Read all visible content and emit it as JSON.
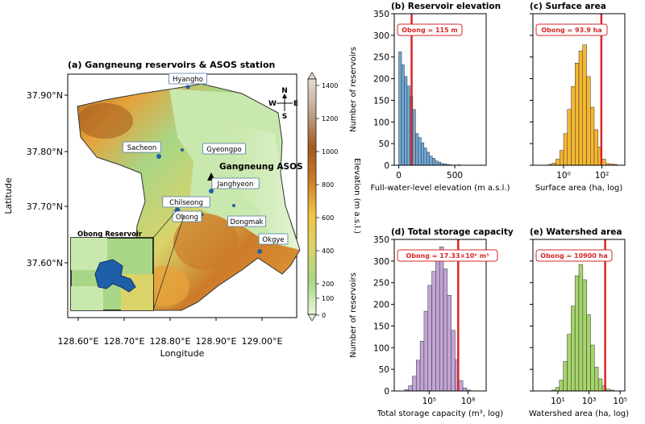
{
  "colors": {
    "reservoir": "#1f5fa8",
    "redline": "#d62728",
    "blue_hist": "#6fa8d6",
    "orange_hist": "#f5b731",
    "purple_hist": "#c3a5d6",
    "green_hist": "#a6d46b",
    "elev_stops": [
      "#e5f5d8",
      "#c9e8ad",
      "#a8d686",
      "#d9d36a",
      "#f0c341",
      "#e7a23a",
      "#cc7b2a",
      "#a25a1d",
      "#7a4418",
      "#bfa68f",
      "#e6dbd2"
    ]
  },
  "map": {
    "title": "(a) Gangneung reservoirs & ASOS station",
    "xlabel": "Longitude",
    "ylabel": "Latitude",
    "xticks": [
      "128.60°E",
      "128.70°E",
      "128.80°E",
      "128.90°E",
      "129.00°E"
    ],
    "yticks": [
      "37.90°N",
      "37.80°N",
      "37.70°N",
      "37.60°N"
    ],
    "colorbar_label": "Elevation (m a.s.l.)",
    "colorbar_ticks": [
      "1400",
      "1200",
      "1000",
      "800",
      "600",
      "400",
      "200",
      "100",
      "0"
    ],
    "compass": {
      "n": "N",
      "s": "S",
      "w": "W",
      "e": "E"
    },
    "station_label": "Gangneung ASOS",
    "inset_title": "Obong Reservoir",
    "places": [
      "Hyangho",
      "Sacheon",
      "Gyeongpo",
      "Janghyeon",
      "Chilseong",
      "Obong",
      "Dongmak",
      "Okgye"
    ]
  },
  "chart_data": [
    {
      "type": "bar",
      "title": "(b) Reservoir elevation",
      "xlabel": "Full-water-level elevation (m a.s.l.)",
      "ylabel": "Number of reservoirs",
      "xlim": [
        -40,
        780
      ],
      "ylim": [
        0,
        350
      ],
      "xticks": [
        "0",
        "500"
      ],
      "yticks": [
        "0",
        "50",
        "100",
        "150",
        "200",
        "250",
        "300",
        "350"
      ],
      "bin_width": 25,
      "bin_start": 0,
      "values": [
        262,
        232,
        205,
        183,
        160,
        129,
        73,
        64,
        52,
        40,
        30,
        21,
        16,
        10,
        7,
        4,
        3,
        2,
        1,
        0,
        0,
        1
      ],
      "annotation": "Obong = 115 m",
      "marker_x": 115
    },
    {
      "type": "bar",
      "title": "(c) Surface area",
      "xlabel": "Surface area (ha, log)",
      "ylabel": "",
      "xlim_log10": [
        -1.6,
        3.2
      ],
      "ylim": [
        0,
        350
      ],
      "xticks": [
        "10⁰",
        "10²"
      ],
      "bin_width_log10": 0.2,
      "bin_start_log10": -0.8,
      "values": [
        2,
        5,
        14,
        34,
        73,
        129,
        182,
        236,
        264,
        278,
        205,
        134,
        82,
        42,
        14,
        4,
        3,
        2
      ],
      "annotation": "Obong = 93.9 ha",
      "marker_x": 93.9
    },
    {
      "type": "bar",
      "title": "(d) Total storage capacity",
      "xlabel": "Total storage capacity (m³, log)",
      "ylabel": "Number of reservoirs",
      "xlim_log10": [
        2.3,
        9.4
      ],
      "ylim": [
        0,
        350
      ],
      "xticks": [
        "10⁵",
        "10⁸"
      ],
      "yticks": [
        "0",
        "50",
        "100",
        "150",
        "200",
        "250",
        "300",
        "350"
      ],
      "bin_width_log10": 0.3,
      "bin_start_log10": 3.1,
      "values": [
        3,
        12,
        34,
        71,
        115,
        184,
        244,
        276,
        322,
        333,
        282,
        221,
        140,
        72,
        24,
        7,
        2
      ],
      "annotation": "Obong = 17.33×10⁶ m³",
      "marker_x": 17330000
    },
    {
      "type": "bar",
      "title": "(e) Watershed area",
      "xlabel": "Watershed area (ha, log)",
      "ylabel": "",
      "xlim_log10": [
        -0.6,
        5.3
      ],
      "ylim": [
        0,
        350
      ],
      "xticks": [
        "10¹",
        "10³",
        "10⁵"
      ],
      "bin_width_log10": 0.25,
      "bin_start_log10": 0.6,
      "values": [
        2,
        8,
        25,
        68,
        131,
        196,
        266,
        292,
        257,
        176,
        106,
        55,
        28,
        12,
        4,
        2
      ],
      "annotation": "Obong = 10900 ha",
      "marker_x": 10900
    }
  ]
}
